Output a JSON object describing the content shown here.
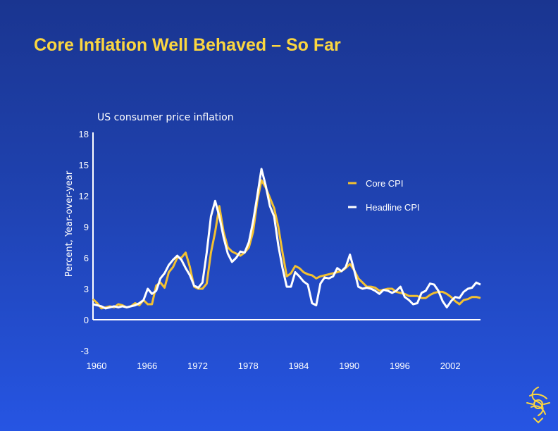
{
  "slide": {
    "title": "Core Inflation Well Behaved – So Far",
    "logo_icon": "decorative-crest-icon"
  },
  "chart_data": {
    "type": "line",
    "title": "US consumer price inflation",
    "xlabel": "",
    "ylabel": "Percent, Year-over-year",
    "xlim": [
      1960,
      2006
    ],
    "ylim": [
      -3,
      18
    ],
    "x_ticks": [
      "1960",
      "1966",
      "1972",
      "1978",
      "1984",
      "1990",
      "1996",
      "2002"
    ],
    "y_ticks": [
      "18",
      "15",
      "12",
      "9",
      "6",
      "3",
      "0",
      "-3"
    ],
    "legend_position": "top-right",
    "series": [
      {
        "name": "Core CPI",
        "color": "#f3c130",
        "points": [
          [
            1960.0,
            2.0
          ],
          [
            1960.5,
            1.6
          ],
          [
            1961.0,
            1.1
          ],
          [
            1961.5,
            1.2
          ],
          [
            1962.0,
            1.3
          ],
          [
            1962.5,
            1.2
          ],
          [
            1963.0,
            1.5
          ],
          [
            1963.5,
            1.4
          ],
          [
            1964.0,
            1.2
          ],
          [
            1964.5,
            1.3
          ],
          [
            1965.0,
            1.6
          ],
          [
            1965.5,
            1.4
          ],
          [
            1966.0,
            1.9
          ],
          [
            1966.5,
            1.5
          ],
          [
            1967.0,
            1.5
          ],
          [
            1967.5,
            3.3
          ],
          [
            1968.0,
            3.6
          ],
          [
            1968.5,
            3.1
          ],
          [
            1969.0,
            4.6
          ],
          [
            1969.5,
            5.1
          ],
          [
            1970.0,
            6.0
          ],
          [
            1970.5,
            6.0
          ],
          [
            1971.0,
            6.5
          ],
          [
            1971.5,
            5.1
          ],
          [
            1972.0,
            3.2
          ],
          [
            1972.5,
            3.0
          ],
          [
            1973.0,
            3.0
          ],
          [
            1973.5,
            3.5
          ],
          [
            1974.0,
            6.5
          ],
          [
            1974.5,
            8.5
          ],
          [
            1975.0,
            11.0
          ],
          [
            1975.5,
            8.5
          ],
          [
            1976.0,
            7.0
          ],
          [
            1976.5,
            6.6
          ],
          [
            1977.0,
            6.4
          ],
          [
            1977.5,
            6.2
          ],
          [
            1978.0,
            6.5
          ],
          [
            1978.5,
            7.0
          ],
          [
            1979.0,
            8.5
          ],
          [
            1979.5,
            11.5
          ],
          [
            1980.0,
            13.5
          ],
          [
            1980.5,
            12.8
          ],
          [
            1981.0,
            11.8
          ],
          [
            1981.5,
            10.8
          ],
          [
            1982.0,
            9.0
          ],
          [
            1982.5,
            6.5
          ],
          [
            1983.0,
            4.2
          ],
          [
            1983.5,
            4.5
          ],
          [
            1984.0,
            5.2
          ],
          [
            1984.5,
            5.0
          ],
          [
            1985.0,
            4.6
          ],
          [
            1985.5,
            4.4
          ],
          [
            1986.0,
            4.3
          ],
          [
            1986.5,
            4.0
          ],
          [
            1987.0,
            4.2
          ],
          [
            1987.5,
            4.3
          ],
          [
            1988.0,
            4.4
          ],
          [
            1988.5,
            4.5
          ],
          [
            1989.0,
            4.6
          ],
          [
            1989.5,
            4.7
          ],
          [
            1990.0,
            5.0
          ],
          [
            1990.5,
            5.4
          ],
          [
            1991.0,
            4.8
          ],
          [
            1991.5,
            4.0
          ],
          [
            1992.0,
            3.6
          ],
          [
            1992.5,
            3.2
          ],
          [
            1993.0,
            3.2
          ],
          [
            1993.5,
            3.1
          ],
          [
            1994.0,
            2.8
          ],
          [
            1994.5,
            2.9
          ],
          [
            1995.0,
            3.0
          ],
          [
            1995.5,
            3.0
          ],
          [
            1996.0,
            2.7
          ],
          [
            1996.5,
            2.6
          ],
          [
            1997.0,
            2.5
          ],
          [
            1997.5,
            2.3
          ],
          [
            1998.0,
            2.3
          ],
          [
            1998.5,
            2.3
          ],
          [
            1999.0,
            2.1
          ],
          [
            1999.5,
            2.1
          ],
          [
            2000.0,
            2.4
          ],
          [
            2000.5,
            2.6
          ],
          [
            2001.0,
            2.7
          ],
          [
            2001.5,
            2.7
          ],
          [
            2002.0,
            2.5
          ],
          [
            2002.5,
            2.2
          ],
          [
            2003.0,
            1.8
          ],
          [
            2003.5,
            1.5
          ],
          [
            2004.0,
            1.9
          ],
          [
            2004.5,
            2.0
          ],
          [
            2005.0,
            2.2
          ],
          [
            2005.5,
            2.2
          ],
          [
            2006.0,
            2.1
          ]
        ]
      },
      {
        "name": "Headline CPI",
        "color": "#ffffff",
        "points": [
          [
            1960.0,
            1.5
          ],
          [
            1960.5,
            1.4
          ],
          [
            1961.0,
            1.3
          ],
          [
            1961.5,
            1.1
          ],
          [
            1962.0,
            1.2
          ],
          [
            1962.5,
            1.3
          ],
          [
            1963.0,
            1.2
          ],
          [
            1963.5,
            1.3
          ],
          [
            1964.0,
            1.2
          ],
          [
            1964.5,
            1.3
          ],
          [
            1965.0,
            1.4
          ],
          [
            1965.5,
            1.6
          ],
          [
            1966.0,
            1.9
          ],
          [
            1966.5,
            3.0
          ],
          [
            1967.0,
            2.5
          ],
          [
            1967.5,
            2.8
          ],
          [
            1968.0,
            4.0
          ],
          [
            1968.5,
            4.5
          ],
          [
            1969.0,
            5.3
          ],
          [
            1969.5,
            5.8
          ],
          [
            1970.0,
            6.2
          ],
          [
            1970.5,
            5.8
          ],
          [
            1971.0,
            5.0
          ],
          [
            1971.5,
            4.3
          ],
          [
            1972.0,
            3.3
          ],
          [
            1972.5,
            3.1
          ],
          [
            1973.0,
            3.6
          ],
          [
            1973.5,
            6.5
          ],
          [
            1974.0,
            10.0
          ],
          [
            1974.5,
            11.5
          ],
          [
            1975.0,
            10.0
          ],
          [
            1975.5,
            8.0
          ],
          [
            1976.0,
            6.4
          ],
          [
            1976.5,
            5.6
          ],
          [
            1977.0,
            6.0
          ],
          [
            1977.5,
            6.6
          ],
          [
            1978.0,
            6.5
          ],
          [
            1978.5,
            7.5
          ],
          [
            1979.0,
            9.5
          ],
          [
            1979.5,
            12.0
          ],
          [
            1980.0,
            14.6
          ],
          [
            1980.5,
            13.0
          ],
          [
            1981.0,
            11.0
          ],
          [
            1981.5,
            10.0
          ],
          [
            1982.0,
            7.2
          ],
          [
            1982.5,
            5.0
          ],
          [
            1983.0,
            3.2
          ],
          [
            1983.5,
            3.2
          ],
          [
            1984.0,
            4.6
          ],
          [
            1984.5,
            4.2
          ],
          [
            1985.0,
            3.7
          ],
          [
            1985.5,
            3.4
          ],
          [
            1986.0,
            1.6
          ],
          [
            1986.5,
            1.4
          ],
          [
            1987.0,
            3.5
          ],
          [
            1987.5,
            4.1
          ],
          [
            1988.0,
            4.0
          ],
          [
            1988.5,
            4.2
          ],
          [
            1989.0,
            5.0
          ],
          [
            1989.5,
            4.7
          ],
          [
            1990.0,
            5.1
          ],
          [
            1990.5,
            6.3
          ],
          [
            1991.0,
            4.8
          ],
          [
            1991.5,
            3.2
          ],
          [
            1992.0,
            3.0
          ],
          [
            1992.5,
            3.1
          ],
          [
            1993.0,
            3.0
          ],
          [
            1993.5,
            2.8
          ],
          [
            1994.0,
            2.5
          ],
          [
            1994.5,
            2.9
          ],
          [
            1995.0,
            2.8
          ],
          [
            1995.5,
            2.6
          ],
          [
            1996.0,
            2.8
          ],
          [
            1996.5,
            3.2
          ],
          [
            1997.0,
            2.2
          ],
          [
            1997.5,
            1.9
          ],
          [
            1998.0,
            1.5
          ],
          [
            1998.5,
            1.6
          ],
          [
            1999.0,
            2.6
          ],
          [
            1999.5,
            2.8
          ],
          [
            2000.0,
            3.5
          ],
          [
            2000.5,
            3.4
          ],
          [
            2001.0,
            2.8
          ],
          [
            2001.5,
            1.8
          ],
          [
            2002.0,
            1.2
          ],
          [
            2002.5,
            1.8
          ],
          [
            2003.0,
            2.2
          ],
          [
            2003.5,
            2.1
          ],
          [
            2004.0,
            2.7
          ],
          [
            2004.5,
            3.0
          ],
          [
            2005.0,
            3.1
          ],
          [
            2005.5,
            3.6
          ],
          [
            2006.0,
            3.4
          ]
        ]
      }
    ]
  }
}
